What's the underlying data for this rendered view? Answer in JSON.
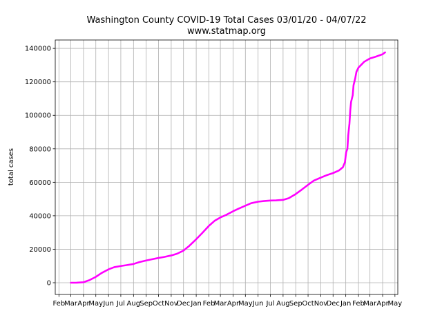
{
  "chart_data": {
    "type": "line",
    "title": "Washington County COVID-19 Total Cases 03/01/20 - 04/07/22",
    "subtitle": "www.statmap.org",
    "xlabel": "",
    "ylabel": "total cases",
    "ylim": [
      -7000,
      145000
    ],
    "yticks": [
      0,
      20000,
      40000,
      60000,
      80000,
      100000,
      120000,
      140000
    ],
    "xlim": [
      "2020-01-23",
      "2022-05-08"
    ],
    "xtick_dates": [
      "2020-02-01",
      "2020-03-01",
      "2020-04-01",
      "2020-05-01",
      "2020-06-01",
      "2020-07-01",
      "2020-08-01",
      "2020-09-01",
      "2020-10-01",
      "2020-11-01",
      "2020-12-01",
      "2021-01-01",
      "2021-02-01",
      "2021-03-01",
      "2021-04-01",
      "2021-05-01",
      "2021-06-01",
      "2021-07-01",
      "2021-08-01",
      "2021-09-01",
      "2021-10-01",
      "2021-11-01",
      "2021-12-01",
      "2022-01-01",
      "2022-02-01",
      "2022-03-01",
      "2022-04-01",
      "2022-05-01"
    ],
    "xtick_labels": [
      "Feb",
      "Mar",
      "Apr",
      "May",
      "Jun",
      "Jul",
      "Aug",
      "Sep",
      "Oct",
      "Nov",
      "Dec",
      "Jan",
      "Feb",
      "Mar",
      "Apr",
      "May",
      "Jun",
      "Jul",
      "Aug",
      "Sep",
      "Oct",
      "Nov",
      "Dec",
      "Jan",
      "Feb",
      "Mar",
      "Apr",
      "May"
    ],
    "grid": true,
    "series": [
      {
        "color": "#ff00ff",
        "points": [
          [
            "2020-03-01",
            0
          ],
          [
            "2020-03-15",
            50
          ],
          [
            "2020-04-01",
            300
          ],
          [
            "2020-04-15",
            1500
          ],
          [
            "2020-05-01",
            3500
          ],
          [
            "2020-05-15",
            5800
          ],
          [
            "2020-06-01",
            8000
          ],
          [
            "2020-06-15",
            9300
          ],
          [
            "2020-07-01",
            10000
          ],
          [
            "2020-07-15",
            10500
          ],
          [
            "2020-08-01",
            11200
          ],
          [
            "2020-08-15",
            12300
          ],
          [
            "2020-09-01",
            13300
          ],
          [
            "2020-09-15",
            14000
          ],
          [
            "2020-10-01",
            14800
          ],
          [
            "2020-10-15",
            15400
          ],
          [
            "2020-11-01",
            16300
          ],
          [
            "2020-11-15",
            17300
          ],
          [
            "2020-12-01",
            19200
          ],
          [
            "2020-12-15",
            22000
          ],
          [
            "2021-01-01",
            26000
          ],
          [
            "2021-01-15",
            29500
          ],
          [
            "2021-02-01",
            34000
          ],
          [
            "2021-02-15",
            37000
          ],
          [
            "2021-03-01",
            39000
          ],
          [
            "2021-03-15",
            40500
          ],
          [
            "2021-04-01",
            42700
          ],
          [
            "2021-04-15",
            44300
          ],
          [
            "2021-05-01",
            46000
          ],
          [
            "2021-05-15",
            47500
          ],
          [
            "2021-06-01",
            48400
          ],
          [
            "2021-06-15",
            48800
          ],
          [
            "2021-07-01",
            49100
          ],
          [
            "2021-07-15",
            49200
          ],
          [
            "2021-08-01",
            49500
          ],
          [
            "2021-08-15",
            50500
          ],
          [
            "2021-09-01",
            53000
          ],
          [
            "2021-09-15",
            55500
          ],
          [
            "2021-10-01",
            58500
          ],
          [
            "2021-10-15",
            61000
          ],
          [
            "2021-11-01",
            62800
          ],
          [
            "2021-11-15",
            64200
          ],
          [
            "2021-12-01",
            65500
          ],
          [
            "2021-12-15",
            67000
          ],
          [
            "2021-12-25",
            69000
          ],
          [
            "2021-12-30",
            72000
          ],
          [
            "2022-01-02",
            78000
          ],
          [
            "2022-01-05",
            80000
          ],
          [
            "2022-01-07",
            88000
          ],
          [
            "2022-01-10",
            95000
          ],
          [
            "2022-01-12",
            103000
          ],
          [
            "2022-01-14",
            108000
          ],
          [
            "2022-01-18",
            112000
          ],
          [
            "2022-01-20",
            118000
          ],
          [
            "2022-01-24",
            122000
          ],
          [
            "2022-01-27",
            126000
          ],
          [
            "2022-02-01",
            128500
          ],
          [
            "2022-02-07",
            130000
          ],
          [
            "2022-02-15",
            132000
          ],
          [
            "2022-03-01",
            134000
          ],
          [
            "2022-03-15",
            135000
          ],
          [
            "2022-04-01",
            136500
          ],
          [
            "2022-04-07",
            137600
          ]
        ]
      }
    ]
  }
}
